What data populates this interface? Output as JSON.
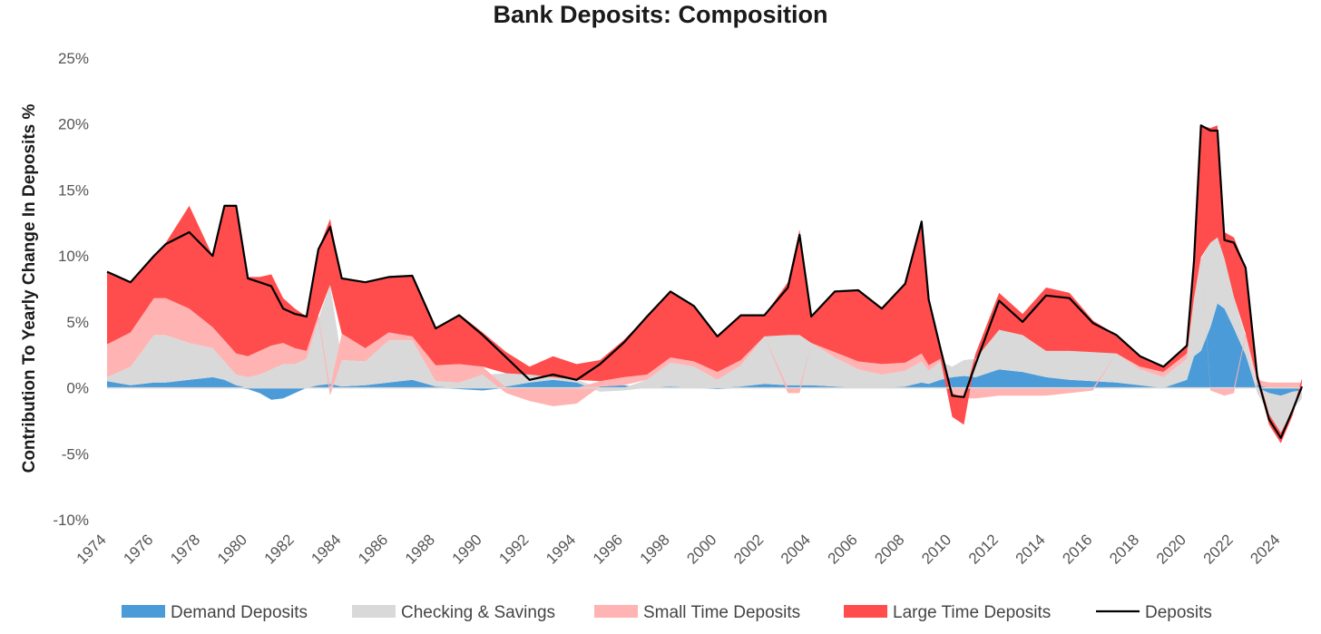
{
  "chart_data": {
    "type": "area",
    "title": "Bank Deposits: Composition",
    "xlabel": "",
    "ylabel": "Contribution To Yearly Change In Deposits %",
    "xlim": [
      1974,
      2024.9
    ],
    "ylim": [
      -10,
      25
    ],
    "y_ticks": [
      25,
      20,
      15,
      10,
      5,
      0,
      -5,
      -10
    ],
    "y_tick_labels": [
      "25%",
      "20%",
      "15%",
      "10%",
      "5%",
      "0%",
      "-5%",
      "-10%"
    ],
    "x_ticks": [
      1974,
      1976,
      1978,
      1980,
      1982,
      1984,
      1986,
      1988,
      1990,
      1992,
      1994,
      1996,
      1998,
      2000,
      2002,
      2004,
      2006,
      2008,
      2010,
      2012,
      2014,
      2016,
      2018,
      2020,
      2022,
      2024
    ],
    "x_tick_labels": [
      "1974",
      "1976",
      "1978",
      "1980",
      "1982",
      "1984",
      "1986",
      "1988",
      "1990",
      "1992",
      "1994",
      "1996",
      "1998",
      "2000",
      "2002",
      "2004",
      "2006",
      "2008",
      "2010",
      "2012",
      "2014",
      "2016",
      "2018",
      "2020",
      "2022",
      "2024"
    ],
    "grid": false,
    "legend_position": "bottom",
    "x": [
      1974.0,
      1975.0,
      1976.0,
      1976.5,
      1977.5,
      1978.5,
      1979.0,
      1979.5,
      1980.0,
      1980.5,
      1981.0,
      1981.5,
      1982.0,
      1982.5,
      1983.0,
      1983.5,
      1984.0,
      1985.0,
      1986.0,
      1987.0,
      1988.0,
      1989.0,
      1990.0,
      1991.0,
      1992.0,
      1993.0,
      1994.0,
      1995.0,
      1996.0,
      1997.0,
      1998.0,
      1999.0,
      2000.0,
      2001.0,
      2002.0,
      2003.0,
      2003.5,
      2004.0,
      2005.0,
      2006.0,
      2007.0,
      2008.0,
      2008.7,
      2009.0,
      2009.5,
      2010.0,
      2010.5,
      2011.0,
      2012.0,
      2013.0,
      2014.0,
      2015.0,
      2016.0,
      2017.0,
      2018.0,
      2019.0,
      2020.0,
      2020.3,
      2020.6,
      2021.0,
      2021.3,
      2021.6,
      2022.0,
      2022.5,
      2023.0,
      2023.5,
      2024.0,
      2024.5,
      2024.9
    ],
    "series": [
      {
        "name": "Demand Deposits",
        "color": "#4a9bd8",
        "values": [
          0.5,
          0.2,
          0.4,
          0.4,
          0.6,
          0.8,
          0.6,
          0.2,
          -0.1,
          -0.4,
          -0.9,
          -0.8,
          -0.4,
          0.0,
          0.2,
          0.3,
          0.1,
          0.2,
          0.4,
          0.6,
          0.1,
          -0.1,
          -0.2,
          0.1,
          0.4,
          0.6,
          0.4,
          0.1,
          0.2,
          0.0,
          0.1,
          0.0,
          -0.1,
          0.1,
          0.3,
          0.2,
          0.2,
          0.2,
          0.1,
          0.0,
          0.0,
          0.1,
          0.4,
          0.3,
          0.6,
          0.8,
          0.9,
          0.8,
          1.4,
          1.2,
          0.8,
          0.6,
          0.5,
          0.4,
          0.2,
          0.0,
          0.6,
          2.4,
          2.8,
          4.6,
          6.4,
          6.0,
          4.5,
          2.5,
          0.2,
          -0.4,
          -0.6,
          -0.3,
          -0.2
        ]
      },
      {
        "name": "Checking & Savings",
        "color": "#d9d9d9",
        "values": [
          0.3,
          1.4,
          3.6,
          3.6,
          2.8,
          2.2,
          1.4,
          0.8,
          0.8,
          1.0,
          1.4,
          1.8,
          1.8,
          2.2,
          5.0,
          7.5,
          2.0,
          1.8,
          3.2,
          3.0,
          0.4,
          0.4,
          1.0,
          1.0,
          0.6,
          0.2,
          0.2,
          -0.3,
          -0.2,
          0.6,
          1.8,
          1.6,
          0.6,
          1.6,
          3.6,
          3.8,
          3.8,
          3.2,
          2.2,
          1.4,
          1.0,
          1.2,
          1.6,
          1.0,
          1.4,
          0.8,
          1.2,
          1.4,
          3.0,
          2.8,
          2.0,
          2.2,
          2.2,
          2.2,
          1.2,
          0.8,
          1.6,
          4.2,
          7.0,
          6.4,
          5.0,
          3.8,
          2.4,
          1.4,
          -0.4,
          -1.6,
          -2.8,
          -1.4,
          -0.6
        ]
      },
      {
        "name": "Small Time Deposits",
        "color": "#ffb3b3",
        "values": [
          2.5,
          2.6,
          2.8,
          2.8,
          2.6,
          1.6,
          1.6,
          1.6,
          1.6,
          1.8,
          1.8,
          1.6,
          1.2,
          0.6,
          0.3,
          -0.6,
          2.0,
          1.0,
          0.6,
          0.3,
          1.2,
          1.4,
          0.6,
          -0.4,
          -1.0,
          -1.4,
          -1.2,
          0.4,
          0.6,
          0.4,
          0.4,
          0.4,
          0.6,
          0.4,
          0.0,
          -0.4,
          -0.4,
          0.0,
          0.4,
          0.6,
          0.8,
          0.6,
          0.6,
          0.4,
          0.2,
          -0.4,
          -0.8,
          -0.8,
          -0.6,
          -0.6,
          -0.6,
          -0.4,
          -0.2,
          0.0,
          0.2,
          0.4,
          0.4,
          0.2,
          0.1,
          -0.2,
          -0.4,
          -0.6,
          -0.4,
          0.2,
          0.4,
          0.4,
          0.4,
          0.4,
          0.4
        ]
      },
      {
        "name": "Large Time Deposits",
        "color": "#ff4d4d",
        "values": [
          5.5,
          3.8,
          3.2,
          4.2,
          7.8,
          5.4,
          10.2,
          11.2,
          6.0,
          5.6,
          5.4,
          3.4,
          3.0,
          2.6,
          5.0,
          5.0,
          4.2,
          5.0,
          4.2,
          4.6,
          2.8,
          3.8,
          2.6,
          1.6,
          0.6,
          1.6,
          1.2,
          1.6,
          2.8,
          4.4,
          5.0,
          4.2,
          2.8,
          3.4,
          1.6,
          4.0,
          8.0,
          2.0,
          4.6,
          5.4,
          4.2,
          6.0,
          10.0,
          5.0,
          0.8,
          -1.8,
          -2.0,
          0.4,
          2.8,
          1.6,
          4.8,
          4.4,
          2.4,
          1.4,
          0.8,
          0.4,
          0.6,
          2.8,
          10.0,
          8.7,
          8.5,
          2.0,
          4.5,
          5.0,
          0.6,
          -0.8,
          -0.8,
          -0.4,
          0.3
        ]
      },
      {
        "name": "Deposits",
        "color": "#000000",
        "values": [
          8.8,
          8.0,
          10.0,
          10.9,
          11.8,
          10.0,
          13.8,
          13.8,
          8.3,
          8.0,
          7.7,
          6.0,
          5.6,
          5.4,
          10.5,
          12.2,
          8.3,
          8.0,
          8.4,
          8.5,
          4.5,
          5.5,
          4.0,
          2.3,
          0.6,
          1.0,
          0.6,
          1.8,
          3.4,
          5.4,
          7.3,
          6.2,
          3.9,
          5.5,
          5.5,
          7.6,
          11.6,
          5.4,
          7.3,
          7.4,
          6.0,
          7.9,
          12.6,
          6.7,
          3.0,
          -0.6,
          -0.7,
          1.8,
          6.6,
          5.0,
          7.0,
          6.8,
          4.9,
          4.0,
          2.4,
          1.6,
          3.2,
          9.6,
          19.9,
          19.5,
          19.5,
          11.2,
          11.0,
          9.1,
          0.8,
          -2.4,
          -3.8,
          -1.7,
          0.1
        ]
      }
    ]
  },
  "legend": {
    "items": [
      {
        "label": "Demand Deposits",
        "color": "#4a9bd8",
        "kind": "swatch"
      },
      {
        "label": "Checking & Savings",
        "color": "#d9d9d9",
        "kind": "swatch"
      },
      {
        "label": "Small Time Deposits",
        "color": "#ffb3b3",
        "kind": "swatch"
      },
      {
        "label": "Large Time Deposits",
        "color": "#ff4d4d",
        "kind": "swatch"
      },
      {
        "label": "Deposits",
        "color": "#000000",
        "kind": "line"
      }
    ]
  },
  "colors": {
    "negative_overlay": "#b03838",
    "zero_line": "#d9d9d9",
    "axis_text": "#555555"
  }
}
